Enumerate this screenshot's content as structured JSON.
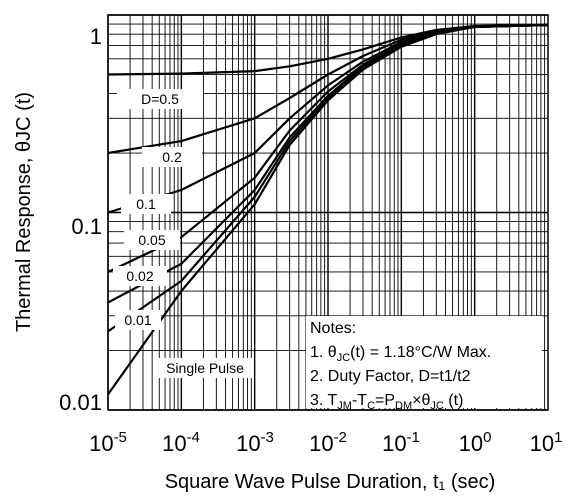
{
  "chart_data": {
    "type": "line",
    "x_scale": "log",
    "y_scale": "log",
    "xlim": [
      1e-05,
      10
    ],
    "ylim": [
      0.01,
      1
    ],
    "grid": true,
    "xlabel": "Square Wave Pulse Duration, t₁ (sec)",
    "ylabel": "Thermal Response, θJC (t)",
    "x_tick_labels": [
      {
        "base": "10",
        "exp": "-5"
      },
      {
        "base": "10",
        "exp": "-4"
      },
      {
        "base": "10",
        "exp": "-3"
      },
      {
        "base": "10",
        "exp": "-2"
      },
      {
        "base": "10",
        "exp": "-1"
      },
      {
        "base": "10",
        "exp": "0"
      },
      {
        "base": "10",
        "exp": "1"
      }
    ],
    "x_tick_values": [
      1e-05,
      0.0001,
      0.001,
      0.01,
      0.1,
      1,
      10
    ],
    "y_tick_labels": [
      "1",
      "0.1",
      "0.01"
    ],
    "y_tick_values": [
      1,
      0.1,
      0.01
    ],
    "series": [
      {
        "name": "D=0.5",
        "x": [
          1e-05,
          0.0001,
          0.001,
          0.003,
          0.01,
          0.03,
          0.1,
          0.3,
          1,
          10
        ],
        "y": [
          0.5,
          0.505,
          0.52,
          0.55,
          0.6,
          0.67,
          0.77,
          0.84,
          0.88,
          0.89
        ]
      },
      {
        "name": "0.2",
        "x": [
          1e-05,
          0.0001,
          0.001,
          0.003,
          0.01,
          0.03,
          0.1,
          0.3,
          1,
          10
        ],
        "y": [
          0.2,
          0.23,
          0.3,
          0.38,
          0.5,
          0.62,
          0.75,
          0.83,
          0.87,
          0.89
        ]
      },
      {
        "name": "0.1",
        "x": [
          1e-05,
          0.0001,
          0.001,
          0.003,
          0.01,
          0.03,
          0.1,
          0.3,
          1,
          10
        ],
        "y": [
          0.1,
          0.13,
          0.2,
          0.3,
          0.44,
          0.58,
          0.73,
          0.82,
          0.87,
          0.89
        ]
      },
      {
        "name": "0.05",
        "x": [
          1e-05,
          0.0001,
          0.001,
          0.003,
          0.01,
          0.03,
          0.1,
          0.3,
          1,
          10
        ],
        "y": [
          0.05,
          0.075,
          0.15,
          0.26,
          0.41,
          0.56,
          0.72,
          0.82,
          0.87,
          0.89
        ]
      },
      {
        "name": "0.02",
        "x": [
          1e-05,
          0.0001,
          0.001,
          0.003,
          0.01,
          0.03,
          0.1,
          0.3,
          1,
          10
        ],
        "y": [
          0.035,
          0.055,
          0.13,
          0.24,
          0.39,
          0.55,
          0.71,
          0.81,
          0.87,
          0.89
        ]
      },
      {
        "name": "0.01",
        "x": [
          1e-05,
          0.0001,
          0.001,
          0.003,
          0.01,
          0.03,
          0.1,
          0.3,
          1,
          10
        ],
        "y": [
          0.025,
          0.045,
          0.12,
          0.23,
          0.38,
          0.54,
          0.7,
          0.81,
          0.87,
          0.89
        ]
      },
      {
        "name": "Single Pulse",
        "x": [
          1e-05,
          0.0001,
          0.001,
          0.003,
          0.01,
          0.03,
          0.1,
          0.3,
          1,
          10
        ],
        "y": [
          0.012,
          0.04,
          0.11,
          0.22,
          0.37,
          0.53,
          0.69,
          0.8,
          0.87,
          0.89
        ]
      }
    ],
    "notes": {
      "title": "Notes:",
      "line1": {
        "prefix": "1.  θ",
        "sub": "JC",
        "suffix": "(t) = 1.18°C/W Max."
      },
      "line2": "2. Duty Factor, D=t1/t2",
      "line3": {
        "a": "3. T",
        "sub1": "JM",
        "b": "-T",
        "sub2": "C",
        "c": "=P",
        "sub3": "DM",
        "d": "×θ",
        "sub4": "JC",
        "e": " (t)"
      }
    }
  }
}
